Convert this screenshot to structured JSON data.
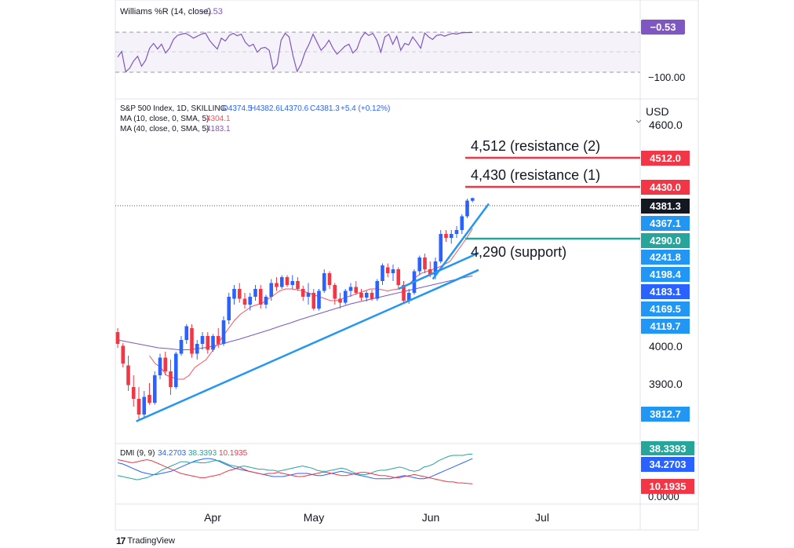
{
  "williams": {
    "title": "Williams %R (14, close)",
    "value_text": "−0.53",
    "axis_min_label": "−100.00",
    "color": "#7e57c2",
    "values": [
      -62,
      -48,
      -99,
      -90,
      -72,
      -60,
      -85,
      -70,
      -40,
      -28,
      -42,
      -30,
      -52,
      -40,
      -18,
      -8,
      -5,
      -3,
      -8,
      -15,
      -10,
      -5,
      -2,
      -20,
      -32,
      -42,
      -15,
      -22,
      -8,
      -3,
      -9,
      -5,
      -25,
      -35,
      -30,
      -50,
      -40,
      -38,
      -45,
      -92,
      -80,
      -20,
      -3,
      -12,
      -60,
      -98,
      -80,
      -50,
      -30,
      -5,
      -25,
      -45,
      -35,
      -20,
      -40,
      -55,
      -45,
      -35,
      -30,
      -52,
      -42,
      -15,
      -1,
      -8,
      -3,
      -20,
      -50,
      -12,
      -5,
      -30,
      -10,
      -45,
      -28,
      -32,
      -12,
      -25,
      -40,
      -2,
      -12,
      -18,
      -8,
      -6,
      -10,
      -6,
      -3,
      -5,
      -2,
      -1,
      -1,
      -0.53
    ]
  },
  "price": {
    "legend_line": "S&P 500 Index, 1D, SKILLING",
    "ohlc": {
      "o": "O4374.5",
      "h": "H4382.6",
      "l": "L4370.6",
      "c": "C4381.3",
      "chg": "+5.4 (+0.12%)"
    },
    "ma10_label": "MA (10, close, 0, SMA, 5)",
    "ma10_value": "4304.1",
    "ma40_label": "MA (40, close, 0, SMA, 5)",
    "ma40_value": "4183.1",
    "currency": "USD",
    "axis_ticks": [
      "4600.0",
      "4000.0",
      "3900.0"
    ]
  },
  "levels": {
    "resistance2_label": "4,512 (resistance (2)",
    "resistance2_price": "4512.0",
    "resistance1_label": "4,430 (resistance (1)",
    "resistance1_price": "4430.0",
    "support_label": "4,290 (support)",
    "support_price": "4290.0"
  },
  "price_tags": {
    "last": "4381.3",
    "t4367": "4367.1",
    "t4241": "4241.8",
    "t4198": "4198.4",
    "t4183": "4183.1",
    "t4169": "4169.5",
    "t4119": "4119.7",
    "t3812": "3812.7"
  },
  "dmi": {
    "title": "DMI (9, 9)",
    "adx_value": "34.2703",
    "plus_value": "38.3393",
    "minus_value": "10.1935",
    "zero_label": "0.0000",
    "adx": [
      30,
      29,
      27,
      25,
      23,
      21,
      20,
      19,
      19,
      20,
      21,
      22,
      24,
      26,
      28,
      30,
      32,
      33,
      34,
      34,
      33,
      31,
      29,
      27,
      25,
      24,
      23,
      22,
      21,
      20,
      19,
      18,
      17,
      17,
      17,
      18,
      19,
      20,
      20,
      20,
      19,
      18,
      18,
      19,
      20,
      21,
      22,
      21,
      20,
      19,
      18,
      17,
      16,
      15,
      15,
      15,
      15,
      16,
      17,
      18,
      17,
      16,
      15,
      15,
      16,
      18,
      20,
      22,
      24,
      26,
      28,
      30,
      32,
      34
    ],
    "plus": [
      18,
      17,
      16,
      15,
      14,
      15,
      16,
      18,
      20,
      23,
      25,
      27,
      29,
      31,
      31,
      30,
      31,
      30,
      30,
      31,
      32,
      32,
      30,
      28,
      27,
      26,
      27,
      26,
      25,
      24,
      24,
      23,
      23,
      22,
      23,
      24,
      25,
      26,
      27,
      26,
      25,
      23,
      22,
      22,
      23,
      24,
      25,
      24,
      22,
      20,
      19,
      19,
      20,
      22,
      23,
      23,
      24,
      25,
      26,
      25,
      23,
      22,
      23,
      26,
      27,
      29,
      32,
      34,
      36,
      37,
      37,
      37,
      38,
      38.3
    ],
    "minus": [
      33,
      32,
      31,
      30,
      31,
      32,
      33,
      32,
      30,
      28,
      26,
      24,
      22,
      20,
      19,
      18,
      17,
      16,
      16,
      17,
      18,
      19,
      21,
      23,
      24,
      26,
      24,
      22,
      21,
      20,
      19,
      20,
      20,
      21,
      20,
      19,
      18,
      17,
      17,
      18,
      19,
      20,
      21,
      21,
      20,
      19,
      18,
      18,
      19,
      20,
      21,
      21,
      20,
      19,
      18,
      18,
      17,
      16,
      16,
      17,
      18,
      19,
      18,
      17,
      16,
      15,
      14,
      13,
      12,
      12,
      11,
      11,
      10.5,
      10.2
    ]
  },
  "colors": {
    "up": "#2962ff",
    "down": "#f23645",
    "ma10": "#f7525f",
    "ma40": "#7e57c2",
    "trend": "#2196f3",
    "support": "#26a69a",
    "adx": "#2962ff",
    "plus": "#26a69a",
    "minus": "#f23645"
  },
  "chart_data": {
    "type": "candlestick",
    "title": "S&P 500 Index, 1D, SKILLING",
    "ylabel": "USD",
    "x_ticks": [
      "Apr",
      "May",
      "Jun",
      "Jul"
    ],
    "ylim": [
      3750,
      4660
    ],
    "candles": [
      [
        4040,
        4050,
        4000,
        4010
      ],
      [
        4005,
        4012,
        3950,
        3960
      ],
      [
        3955,
        3980,
        3890,
        3905
      ],
      [
        3900,
        3930,
        3850,
        3870
      ],
      [
        3870,
        3900,
        3815,
        3830
      ],
      [
        3830,
        3890,
        3820,
        3875
      ],
      [
        3880,
        3910,
        3855,
        3860
      ],
      [
        3860,
        3940,
        3855,
        3930
      ],
      [
        3930,
        3985,
        3920,
        3975
      ],
      [
        3975,
        3990,
        3930,
        3940
      ],
      [
        3940,
        3970,
        3880,
        3900
      ],
      [
        3900,
        3990,
        3895,
        3985
      ],
      [
        3985,
        4030,
        3980,
        4020
      ],
      [
        4020,
        4060,
        4010,
        4055
      ],
      [
        4050,
        4060,
        3975,
        3985
      ],
      [
        3985,
        4020,
        3970,
        4010
      ],
      [
        4010,
        4040,
        3995,
        4030
      ],
      [
        4030,
        4040,
        3985,
        3995
      ],
      [
        3995,
        4035,
        3990,
        4030
      ],
      [
        4030,
        4050,
        4000,
        4010
      ],
      [
        4010,
        4080,
        4005,
        4070
      ],
      [
        4070,
        4140,
        4060,
        4130
      ],
      [
        4125,
        4160,
        4110,
        4150
      ],
      [
        4150,
        4165,
        4115,
        4125
      ],
      [
        4125,
        4140,
        4100,
        4110
      ],
      [
        4110,
        4140,
        4095,
        4130
      ],
      [
        4130,
        4160,
        4120,
        4150
      ],
      [
        4150,
        4160,
        4100,
        4110
      ],
      [
        4110,
        4135,
        4100,
        4130
      ],
      [
        4130,
        4175,
        4120,
        4165
      ],
      [
        4165,
        4180,
        4145,
        4155
      ],
      [
        4155,
        4185,
        4150,
        4180
      ],
      [
        4180,
        4185,
        4155,
        4160
      ],
      [
        4160,
        4185,
        4150,
        4170
      ],
      [
        4170,
        4180,
        4145,
        4150
      ],
      [
        4150,
        4158,
        4120,
        4130
      ],
      [
        4130,
        4165,
        4110,
        4140
      ],
      [
        4140,
        4150,
        4095,
        4100
      ],
      [
        4100,
        4150,
        4095,
        4145
      ],
      [
        4145,
        4200,
        4140,
        4190
      ],
      [
        4190,
        4195,
        4150,
        4160
      ],
      [
        4160,
        4165,
        4110,
        4125
      ],
      [
        4125,
        4140,
        4100,
        4115
      ],
      [
        4115,
        4150,
        4110,
        4145
      ],
      [
        4145,
        4165,
        4130,
        4155
      ],
      [
        4155,
        4170,
        4135,
        4140
      ],
      [
        4140,
        4150,
        4120,
        4128
      ],
      [
        4128,
        4145,
        4118,
        4140
      ],
      [
        4140,
        4148,
        4120,
        4125
      ],
      [
        4125,
        4175,
        4120,
        4170
      ],
      [
        4170,
        4215,
        4160,
        4210
      ],
      [
        4205,
        4215,
        4180,
        4190
      ],
      [
        4190,
        4212,
        4170,
        4200
      ],
      [
        4200,
        4205,
        4150,
        4160
      ],
      [
        4160,
        4170,
        4115,
        4120
      ],
      [
        4120,
        4150,
        4112,
        4140
      ],
      [
        4140,
        4200,
        4135,
        4195
      ],
      [
        4195,
        4235,
        4185,
        4230
      ],
      [
        4230,
        4240,
        4190,
        4200
      ],
      [
        4200,
        4220,
        4180,
        4185
      ],
      [
        4185,
        4230,
        4175,
        4220
      ],
      [
        4220,
        4300,
        4215,
        4290
      ],
      [
        4290,
        4300,
        4270,
        4280
      ],
      [
        4280,
        4300,
        4265,
        4290
      ],
      [
        4290,
        4310,
        4280,
        4300
      ],
      [
        4300,
        4340,
        4290,
        4335
      ],
      [
        4335,
        4380,
        4330,
        4375
      ],
      [
        4374.5,
        4382.6,
        4370.6,
        4381.3
      ]
    ],
    "ma10_approx": [
      3980,
      3960,
      3950,
      3930,
      3925,
      3920,
      3920,
      3930,
      3950,
      3960,
      3970,
      3990,
      4010,
      4030,
      4050,
      4070,
      4085,
      4095,
      4105,
      4110,
      4115,
      4125,
      4135,
      4145,
      4150,
      4150,
      4148,
      4145,
      4140,
      4135,
      4130,
      4125,
      4120,
      4120,
      4125,
      4130,
      4135,
      4140,
      4145,
      4150,
      4150,
      4148,
      4145,
      4148,
      4150,
      4155,
      4165,
      4180,
      4190,
      4195,
      4200,
      4205,
      4212,
      4220,
      4240,
      4260,
      4280,
      4304
    ],
    "ma40_approx": [
      4020,
      4015,
      4010,
      4005,
      4000,
      3998,
      3995,
      3995,
      3998,
      4002,
      4008,
      4015,
      4022,
      4030,
      4038,
      4046,
      4055,
      4063,
      4072,
      4080,
      4088,
      4096,
      4104,
      4112,
      4118,
      4124,
      4130,
      4136,
      4142,
      4148,
      4154,
      4160,
      4166,
      4172,
      4178,
      4183.1
    ],
    "trendlines": [
      {
        "from": [
          3812.7,
          "candle 5"
        ],
        "to": [
          4198,
          "end"
        ]
      },
      {
        "from": [
          4150,
          "candle 50"
        ],
        "to": [
          4241,
          "end"
        ]
      },
      {
        "from": [
          4190,
          "candle 55"
        ],
        "to": [
          4367,
          "end"
        ]
      }
    ],
    "horizontal_levels": [
      4512,
      4430,
      4290
    ]
  }
}
